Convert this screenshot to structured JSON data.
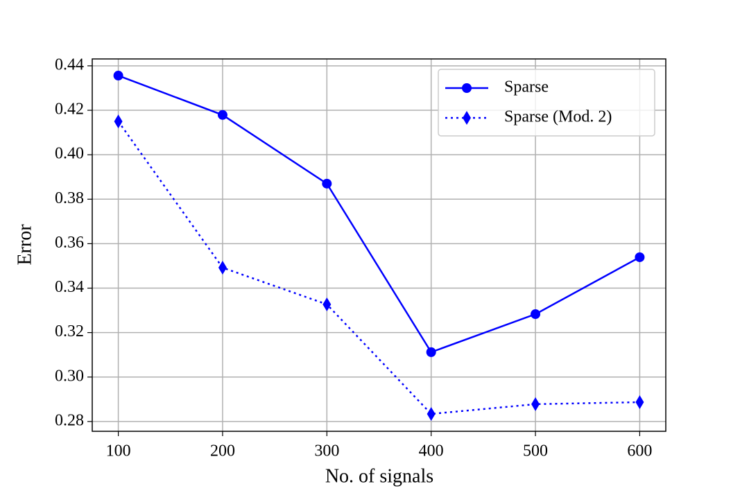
{
  "chart_data": {
    "type": "line",
    "xlabel": "No. of signals",
    "ylabel": "Error",
    "x": [
      100,
      200,
      300,
      400,
      500,
      600
    ],
    "series": [
      {
        "name": "Sparse",
        "color": "#0000ff",
        "linestyle": "solid",
        "marker": "circle",
        "values": [
          0.4356,
          0.4179,
          0.387,
          0.3112,
          0.3283,
          0.3539
        ]
      },
      {
        "name": "Sparse (Mod. 2)",
        "color": "#0000ff",
        "linestyle": "dotted",
        "marker": "diamond",
        "values": [
          0.415,
          0.3492,
          0.3327,
          0.2834,
          0.2878,
          0.2887
        ]
      }
    ],
    "xlim": [
      75,
      625
    ],
    "xticks": [
      100,
      200,
      300,
      400,
      500,
      600
    ],
    "ylim": [
      0.2756,
      0.4431
    ],
    "yticks": [
      0.28,
      {
        "value": 0.3,
        "label": "0.30"
      },
      0.32,
      0.34,
      0.36,
      0.38,
      {
        "value": 0.4,
        "label": "0.40"
      },
      0.42,
      0.44
    ],
    "grid": true,
    "legend": "upper right"
  }
}
